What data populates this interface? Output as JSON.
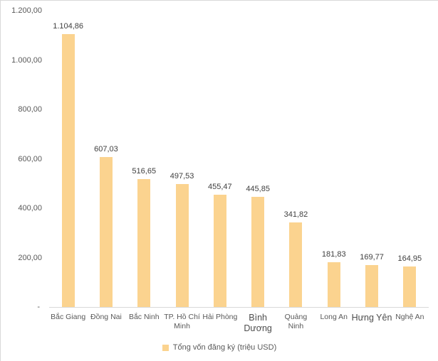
{
  "chart_data": {
    "type": "bar",
    "title": "",
    "xlabel": "",
    "ylabel": "",
    "categories": [
      "Bắc Giang",
      "Đồng Nai",
      "Bắc Ninh",
      "TP. Hồ Chí Minh",
      "Hải Phòng",
      "Bình Dương",
      "Quảng Ninh",
      "Long An",
      "Hưng Yên",
      "Nghệ An"
    ],
    "values": [
      1104.86,
      607.03,
      516.65,
      497.53,
      455.47,
      445.85,
      341.82,
      181.83,
      169.77,
      164.95
    ],
    "value_labels": [
      "1.104,86",
      "607,03",
      "516,65",
      "497,53",
      "455,47",
      "445,85",
      "341,82",
      "181,83",
      "169,77",
      "164,95"
    ],
    "emphasized": [
      false,
      false,
      false,
      false,
      false,
      true,
      false,
      false,
      true,
      false
    ],
    "ylim": [
      0,
      1200
    ],
    "y_ticks": [
      {
        "value": 1200,
        "label": "1.200,00"
      },
      {
        "value": 1000,
        "label": "1.000,00"
      },
      {
        "value": 800,
        "label": "800,00"
      },
      {
        "value": 600,
        "label": "600,00"
      },
      {
        "value": 400,
        "label": "400,00"
      },
      {
        "value": 200,
        "label": "200,00"
      },
      {
        "value": 0,
        "label": "-"
      }
    ],
    "grid": false,
    "legend": {
      "label": "Tổng vốn đăng ký (triệu USD)",
      "position": "bottom"
    },
    "colors": {
      "bar": "#FBD38F",
      "axis": "#D9D9D9",
      "tick_text": "#595959",
      "value_text": "#404040"
    }
  }
}
